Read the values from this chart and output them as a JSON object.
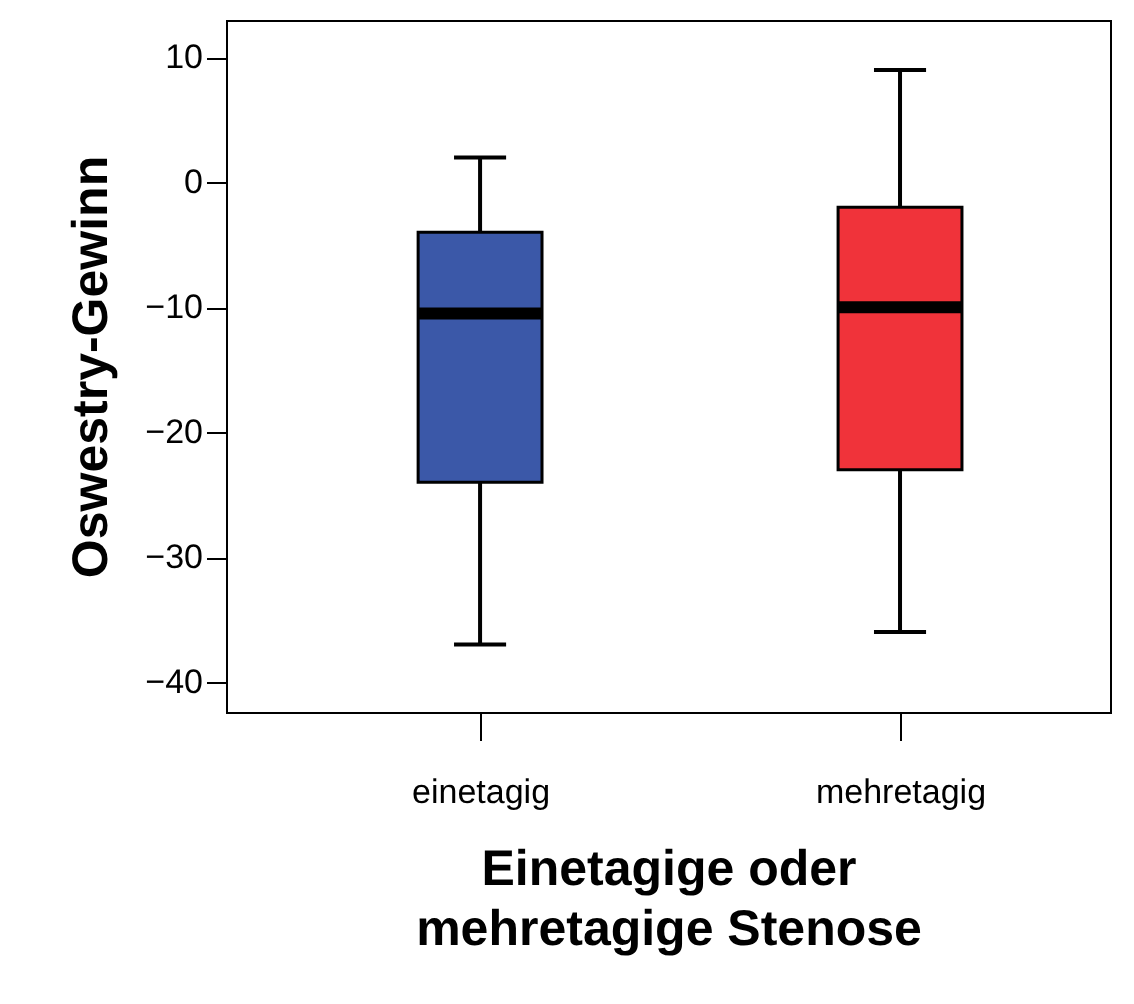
{
  "chart_data": {
    "type": "box",
    "xlabel": "Einetagige oder mehretagige Stenose",
    "ylabel": "Oswestry-Gewinn",
    "categories": [
      "einetagig",
      "mehretagig"
    ],
    "colors": [
      "#3b58a8",
      "#f0333a"
    ],
    "boxes": [
      {
        "low": -37,
        "q1": -24,
        "median": -10.5,
        "q3": -4,
        "high": 2
      },
      {
        "low": -36,
        "q1": -23,
        "median": -10,
        "q3": -2,
        "high": 9
      }
    ],
    "ylim": [
      -42.4,
      13
    ],
    "yticks": [
      -40,
      -30,
      -20,
      -10,
      0,
      10
    ],
    "grid": false
  }
}
